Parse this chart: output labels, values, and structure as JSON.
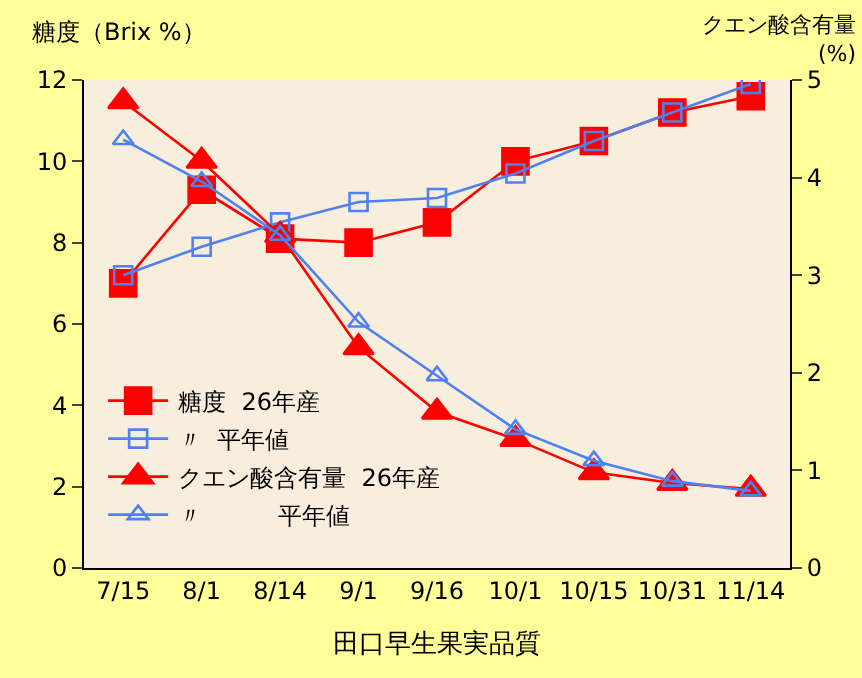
{
  "chart_data": {
    "type": "line",
    "xlabel": "田口早生果実品質",
    "ylabel": "糖度（Brix %）",
    "y2label": "クエン酸含有量\n(%)",
    "categories": [
      "7/15",
      "8/1",
      "8/14",
      "9/1",
      "9/16",
      "10/1",
      "10/15",
      "10/31",
      "11/14"
    ],
    "ylim": [
      0,
      12
    ],
    "yticks": [
      0,
      2,
      4,
      6,
      8,
      10,
      12
    ],
    "y2lim": [
      0,
      5
    ],
    "y2ticks": [
      0,
      1,
      2,
      3,
      4,
      5
    ],
    "grid": false,
    "legend": "bottom left",
    "series": [
      {
        "name": "糖度  26年産",
        "color": "#ff0000",
        "marker": "square",
        "values": [
          7.0,
          9.3,
          8.1,
          8.0,
          8.5,
          10.0,
          10.5,
          11.2,
          11.6
        ]
      },
      {
        "name": "〃  平年値",
        "color": "#4f81f0",
        "marker": "square",
        "values": [
          7.2,
          7.9,
          8.5,
          9.0,
          9.1,
          9.7,
          10.5,
          11.2,
          11.9
        ]
      },
      {
        "name": "クエン酸含有量  26年産",
        "color": "#ff0000",
        "marker": "triangle",
        "axis": "y2",
        "values": [
          4.78,
          4.17,
          3.41,
          2.26,
          1.6,
          1.32,
          0.98,
          0.87,
          0.81
        ]
      },
      {
        "name": "〃          平年値",
        "color": "#4f81f0",
        "marker": "triangle",
        "axis": "y2",
        "values": [
          4.39,
          3.96,
          3.41,
          2.52,
          1.97,
          1.42,
          1.1,
          0.89,
          0.79
        ]
      }
    ]
  }
}
